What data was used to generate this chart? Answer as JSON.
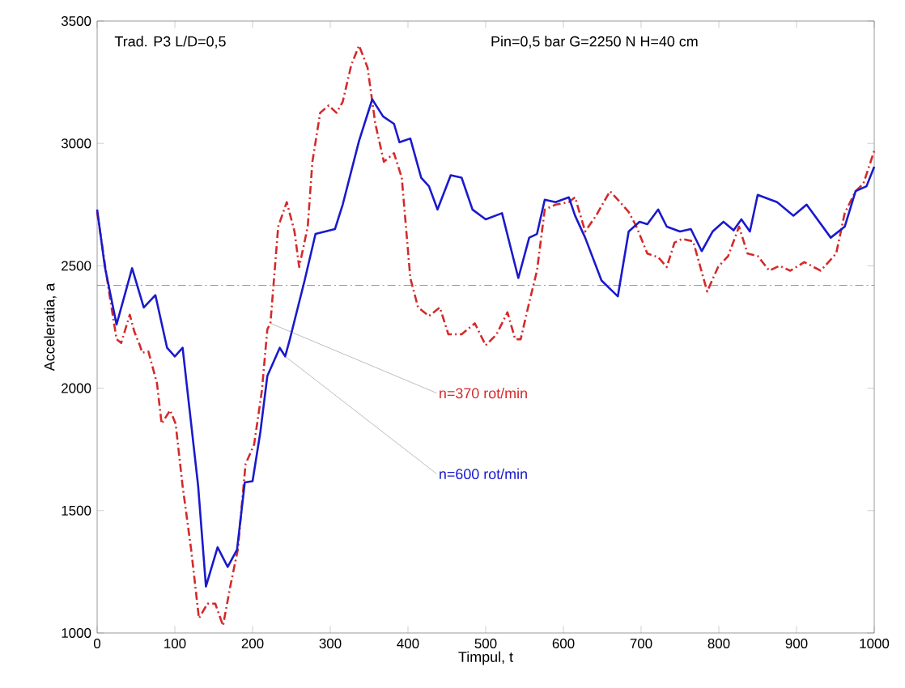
{
  "chart_data": {
    "type": "line",
    "xlabel": "Timpul, t",
    "ylabel": "Acceleratia, a",
    "annotations": [
      "Trad. P3   L/D=0,5",
      "Pin=0,5 bar  G=2250 N  H=40 cm"
    ],
    "xlim": [
      0,
      1000
    ],
    "ylim": [
      1000,
      3500
    ],
    "xticks": [
      0,
      100,
      200,
      300,
      400,
      500,
      600,
      700,
      800,
      900,
      1000
    ],
    "yticks": [
      1000,
      1500,
      2000,
      2500,
      3000,
      3500
    ],
    "grid": false,
    "legend": false,
    "marker": "none",
    "ref_lines": [
      {
        "axis": "y",
        "value": 2420,
        "color": "#3c9a5a",
        "line_style": "dashed"
      }
    ],
    "series": [
      {
        "name": "n=370 rot/min",
        "color": "#d42a2a",
        "line_style": "dashed",
        "x": [
          0,
          15,
          25,
          31,
          42,
          48,
          55,
          58,
          66,
          77,
          83,
          94,
          101,
          110,
          121,
          131,
          142,
          152,
          162,
          171,
          181,
          191,
          202,
          212,
          219,
          223,
          233,
          244,
          254,
          260,
          271,
          277,
          287,
          298,
          308,
          316,
          327,
          337,
          348,
          358,
          369,
          382,
          392,
          403,
          413,
          427,
          441,
          452,
          469,
          486,
          500,
          514,
          528,
          538,
          545,
          556,
          566,
          576,
          590,
          607,
          615,
          628,
          642,
          660,
          673,
          684,
          694,
          708,
          722,
          733,
          743,
          753,
          767,
          785,
          799,
          812,
          826,
          837,
          850,
          865,
          878,
          892,
          910,
          931,
          951,
          962,
          976,
          986,
          1000
        ],
        "values": [
          2720,
          2400,
          2200,
          2185,
          2300,
          2230,
          2175,
          2145,
          2150,
          2020,
          1855,
          1910,
          1855,
          1600,
          1340,
          1060,
          1120,
          1120,
          1030,
          1185,
          1340,
          1690,
          1770,
          1990,
          2240,
          2265,
          2660,
          2760,
          2640,
          2495,
          2660,
          2925,
          3125,
          3155,
          3125,
          3170,
          3320,
          3400,
          3310,
          3080,
          2925,
          2960,
          2860,
          2450,
          2330,
          2295,
          2330,
          2220,
          2220,
          2265,
          2175,
          2220,
          2310,
          2200,
          2200,
          2350,
          2480,
          2730,
          2750,
          2760,
          2780,
          2640,
          2705,
          2805,
          2760,
          2720,
          2660,
          2550,
          2535,
          2495,
          2595,
          2610,
          2600,
          2395,
          2495,
          2540,
          2660,
          2550,
          2540,
          2480,
          2500,
          2480,
          2515,
          2480,
          2550,
          2715,
          2805,
          2835,
          2970
        ]
      },
      {
        "name": "n=600 rot/min",
        "color": "#1a1acc",
        "line_style": "solid",
        "x": [
          0,
          10,
          25,
          45,
          60,
          75,
          90,
          100,
          110,
          130,
          140,
          155,
          168,
          180,
          190,
          200,
          210,
          219,
          235,
          242,
          248,
          267,
          281,
          306,
          316,
          337,
          354,
          368,
          382,
          389,
          403,
          417,
          427,
          438,
          455,
          469,
          483,
          500,
          521,
          542,
          556,
          566,
          576,
          590,
          607,
          615,
          628,
          649,
          670,
          684,
          698,
          708,
          722,
          733,
          750,
          764,
          778,
          792,
          806,
          819,
          829,
          840,
          850,
          875,
          896,
          913,
          944,
          962,
          976,
          990,
          1000
        ],
        "values": [
          2730,
          2495,
          2260,
          2490,
          2330,
          2380,
          2165,
          2130,
          2165,
          1600,
          1190,
          1350,
          1270,
          1340,
          1615,
          1620,
          1820,
          2050,
          2165,
          2130,
          2200,
          2440,
          2630,
          2650,
          2750,
          3010,
          3180,
          3110,
          3080,
          3005,
          3020,
          2860,
          2825,
          2730,
          2870,
          2860,
          2730,
          2690,
          2715,
          2450,
          2615,
          2630,
          2770,
          2760,
          2780,
          2705,
          2615,
          2440,
          2375,
          2640,
          2680,
          2670,
          2730,
          2660,
          2640,
          2650,
          2560,
          2640,
          2680,
          2645,
          2690,
          2640,
          2790,
          2760,
          2705,
          2750,
          2615,
          2660,
          2805,
          2825,
          2905
        ]
      }
    ]
  }
}
